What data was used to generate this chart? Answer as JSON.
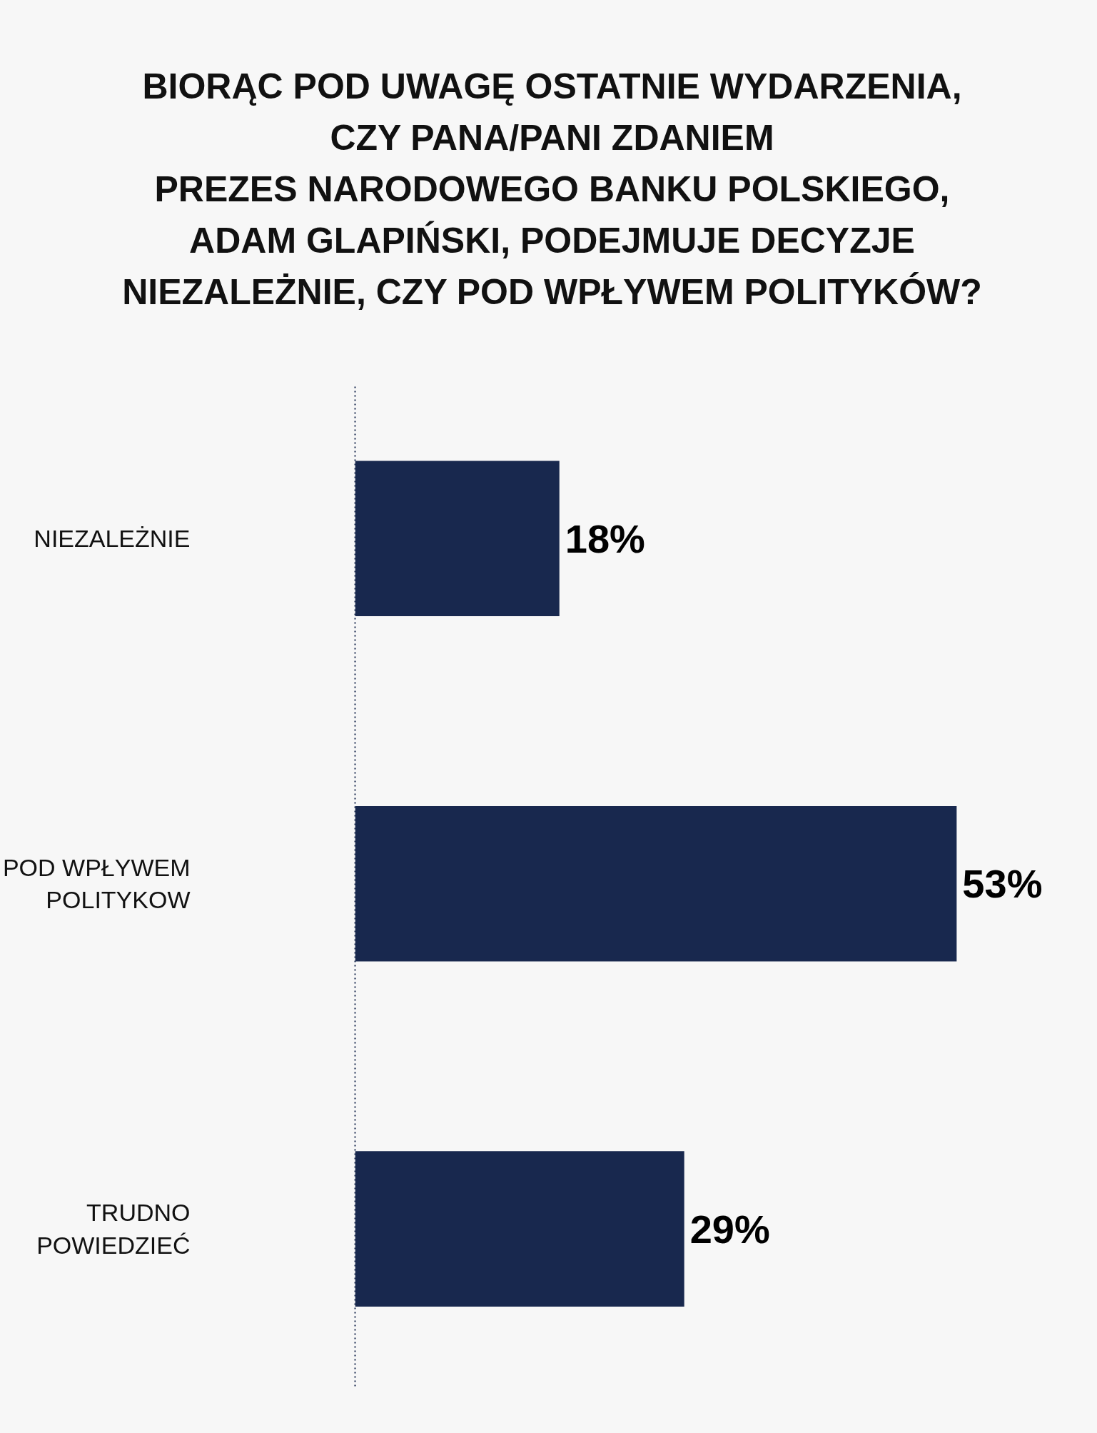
{
  "chart_data": {
    "type": "bar",
    "orientation": "horizontal",
    "title": "BIORĄC POD UWAGĘ OSTATNIE WYDARZENIA,\nCZY PANA/PANI ZDANIEM\nPREZES NARODOWEGO BANKU POLSKIEGO,\nADAM GLAPIŃSKI, PODEJMUJE DECYZJE\nNIEZALEŻNIE, CZY POD WPŁYWEM POLITYKÓW?",
    "categories": [
      "NIEZALEŻNIE",
      "POD WPŁYWEM\nPOLITYKOW",
      "TRUDNO\nPOWIEDZIEĆ"
    ],
    "values": [
      18,
      53,
      29
    ],
    "value_labels": [
      "18%",
      "53%",
      "29%"
    ],
    "color": "#18284e",
    "grid": false
  }
}
